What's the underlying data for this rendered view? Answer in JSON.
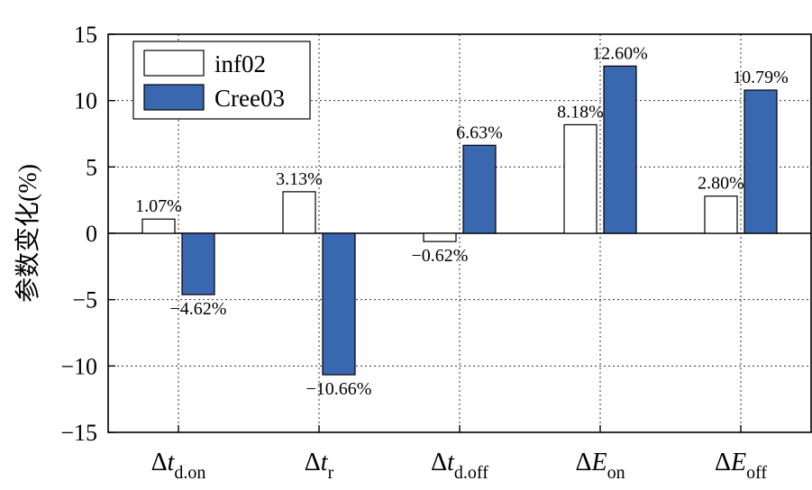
{
  "chart_data": {
    "type": "bar",
    "title": "",
    "xlabel": "",
    "ylabel": "参数变化(%)",
    "ylim": [
      -15,
      15
    ],
    "yticks": [
      15,
      10,
      5,
      0,
      -5,
      -10,
      -15
    ],
    "ytick_labels": [
      "15",
      "10",
      "5",
      "0",
      "−5",
      "−10",
      "−15"
    ],
    "grid": true,
    "legend_position": "top-left",
    "categories": [
      {
        "main": "Δ",
        "italic": "t",
        "sub": "d.on"
      },
      {
        "main": "Δ",
        "italic": "t",
        "sub": "r"
      },
      {
        "main": "Δ",
        "italic": "t",
        "sub": "d.off"
      },
      {
        "main": "Δ",
        "italic": "E",
        "sub": "on"
      },
      {
        "main": "Δ",
        "italic": "E",
        "sub": "off"
      }
    ],
    "series": [
      {
        "name": "inf02",
        "color": "#ffffff",
        "values": [
          1.07,
          3.13,
          -0.62,
          8.18,
          2.8
        ],
        "labels": [
          "1.07%",
          "3.13%",
          "−0.62%",
          "8.18%",
          "2.80%"
        ]
      },
      {
        "name": "Cree03",
        "color": "#3a68b0",
        "values": [
          -4.62,
          -10.66,
          6.63,
          12.6,
          10.79
        ],
        "labels": [
          "−4.62%",
          "−10.66%",
          "6.63%",
          "12.60%",
          "10.79%"
        ]
      }
    ]
  }
}
